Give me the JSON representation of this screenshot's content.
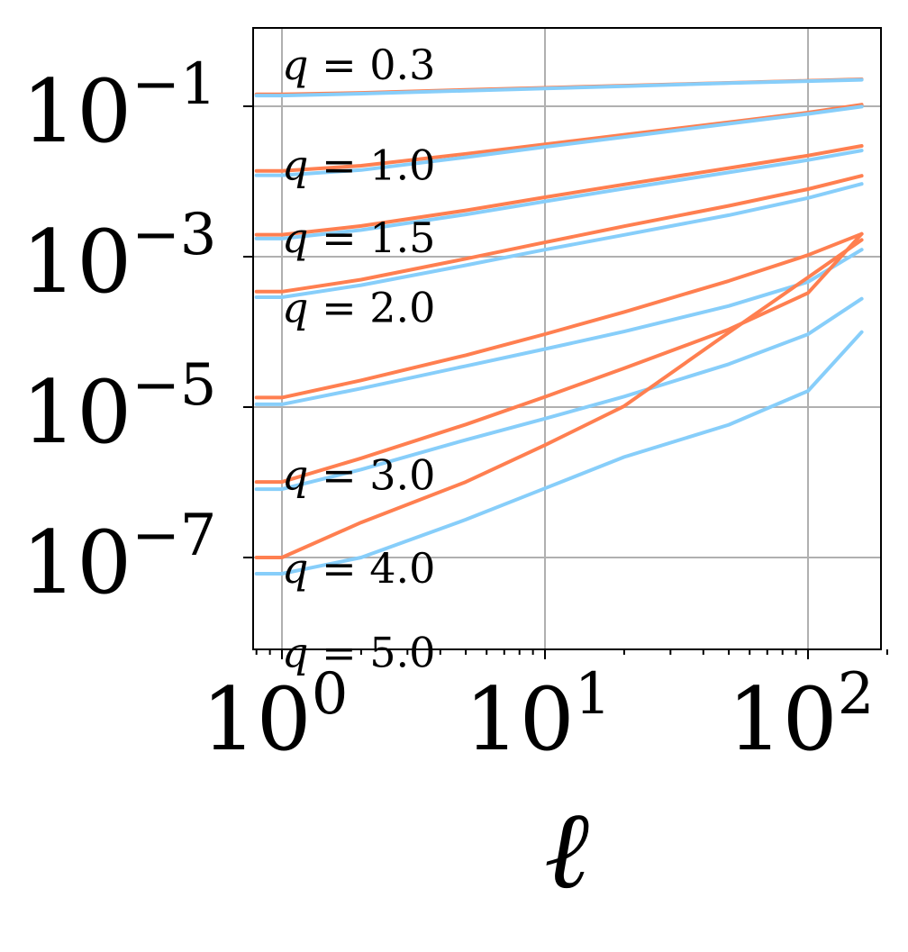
{
  "chart_data": {
    "type": "line",
    "x_scale": "log",
    "y_scale": "log",
    "xlabel": "ℓ",
    "ylabel": "",
    "xlim": [
      0.8,
      200
    ],
    "ylim": [
      2e-09,
      1.5
    ],
    "grid": true,
    "x_ticks": [
      {
        "value": 1,
        "base": "10",
        "exp": "0"
      },
      {
        "value": 10,
        "base": "10",
        "exp": "1"
      },
      {
        "value": 100,
        "base": "10",
        "exp": "2"
      }
    ],
    "y_ticks": [
      {
        "value": 0.1,
        "base": "10",
        "exp": "−1"
      },
      {
        "value": 0.001,
        "base": "10",
        "exp": "−3"
      },
      {
        "value": 1e-05,
        "base": "10",
        "exp": "−5"
      },
      {
        "value": 1e-07,
        "base": "10",
        "exp": "−7"
      }
    ],
    "colors": {
      "orange": "#ff7f50",
      "blue": "#87cefa"
    },
    "annotations": [
      {
        "text": "q = 0.3",
        "x": 1.0,
        "y": 0.23
      },
      {
        "text": "q = 1.0",
        "x": 1.0,
        "y": 0.0105
      },
      {
        "text": "q = 1.5",
        "x": 1.0,
        "y": 0.00115
      },
      {
        "text": "q = 2.0",
        "x": 1.0,
        "y": 0.000135
      },
      {
        "text": "q = 3.0",
        "x": 1.0,
        "y": 8e-07
      },
      {
        "text": "q = 4.0",
        "x": 1.0,
        "y": 4.65e-08
      },
      {
        "text": "q = 5.0",
        "x": 1.0,
        "y": 3.5e-09
      }
    ],
    "series": [
      {
        "color": "orange",
        "x": [
          0.8,
          1,
          2,
          5,
          10,
          20,
          50,
          100,
          160
        ],
        "y": [
          0.144,
          0.144,
          0.151,
          0.165,
          0.176,
          0.188,
          0.205,
          0.219,
          0.229
        ]
      },
      {
        "color": "blue",
        "x": [
          0.8,
          1,
          2,
          5,
          10,
          20,
          50,
          100,
          160
        ],
        "y": [
          0.139,
          0.139,
          0.147,
          0.161,
          0.172,
          0.185,
          0.203,
          0.216,
          0.225
        ]
      },
      {
        "color": "orange",
        "x": [
          0.8,
          1,
          2,
          5,
          10,
          20,
          50,
          100,
          160
        ],
        "y": [
          0.0138,
          0.0138,
          0.0162,
          0.0233,
          0.0312,
          0.0418,
          0.0613,
          0.0825,
          0.105
        ]
      },
      {
        "color": "blue",
        "x": [
          0.8,
          1,
          2,
          5,
          10,
          20,
          50,
          100,
          160
        ],
        "y": [
          0.0121,
          0.0121,
          0.0142,
          0.021,
          0.0288,
          0.0391,
          0.0585,
          0.0792,
          0.099
        ]
      },
      {
        "color": "orange",
        "x": [
          0.8,
          1,
          2,
          5,
          10,
          20,
          50,
          100,
          160
        ],
        "y": [
          0.00196,
          0.00196,
          0.00256,
          0.00413,
          0.00617,
          0.00913,
          0.0151,
          0.0221,
          0.0297
        ]
      },
      {
        "color": "blue",
        "x": [
          0.8,
          1,
          2,
          5,
          10,
          20,
          50,
          100,
          160
        ],
        "y": [
          0.00174,
          0.00174,
          0.00226,
          0.00364,
          0.00544,
          0.00805,
          0.0132,
          0.0193,
          0.0258
        ]
      },
      {
        "color": "orange",
        "x": [
          0.8,
          1,
          2,
          5,
          10,
          20,
          50,
          100,
          160
        ],
        "y": [
          0.000343,
          0.000343,
          0.000495,
          0.000938,
          0.00155,
          0.00254,
          0.00475,
          0.0079,
          0.0119
        ]
      },
      {
        "color": "blue",
        "x": [
          0.8,
          1,
          2,
          5,
          10,
          20,
          50,
          100,
          160
        ],
        "y": [
          0.000289,
          0.000289,
          0.000418,
          0.000769,
          0.00124,
          0.00195,
          0.00357,
          0.00604,
          0.00927
        ]
      },
      {
        "color": "orange",
        "x": [
          0.8,
          1,
          2,
          5,
          10,
          20,
          50,
          100,
          160
        ],
        "y": [
          1.34e-05,
          1.34e-05,
          2.27e-05,
          4.89e-05,
          9.33e-05,
          0.000184,
          0.000476,
          0.00105,
          0.00201
        ]
      },
      {
        "color": "blue",
        "x": [
          0.8,
          1,
          2,
          5,
          10,
          20,
          50,
          100,
          160
        ],
        "y": [
          1.09e-05,
          1.09e-05,
          1.77e-05,
          3.52e-05,
          5.92e-05,
          0.000101,
          0.000221,
          0.000462,
          0.00124
        ]
      },
      {
        "color": "orange",
        "x": [
          0.8,
          1,
          2,
          5,
          10,
          20,
          50,
          100,
          160
        ],
        "y": [
          1.01e-06,
          1.01e-06,
          2.09e-06,
          5.87e-06,
          1.37e-05,
          3.28e-05,
          0.000108,
          0.000329,
          0.00201
        ]
      },
      {
        "color": "blue",
        "x": [
          0.8,
          1,
          2,
          5,
          10,
          20,
          50,
          100,
          160
        ],
        "y": [
          8.1e-07,
          8.1e-07,
          1.48e-06,
          3.67e-06,
          7.02e-06,
          1.38e-05,
          3.73e-05,
          9.32e-05,
          0.000276
        ]
      },
      {
        "color": "orange",
        "x": [
          0.8,
          1,
          2,
          5,
          10,
          20,
          45,
          100,
          160
        ],
        "y": [
          1e-07,
          1e-07,
          2.92e-07,
          1.01e-06,
          3.12e-06,
          1.03e-05,
          7.58e-05,
          0.000531,
          0.00167
        ]
      },
      {
        "color": "blue",
        "x": [
          0.8,
          1,
          2,
          5,
          10,
          20,
          50,
          100,
          160
        ],
        "y": [
          6.09e-08,
          6.09e-08,
          1e-07,
          3.19e-07,
          8.31e-07,
          2.17e-06,
          5.83e-06,
          1.64e-05,
          9.95e-05
        ]
      }
    ]
  }
}
